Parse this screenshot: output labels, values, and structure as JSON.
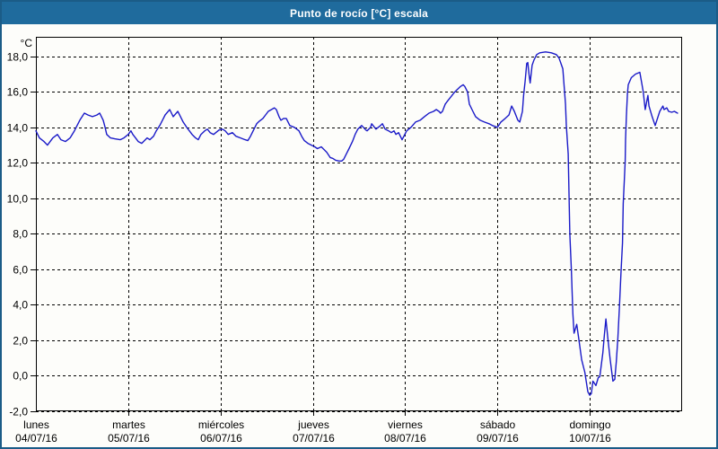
{
  "window": {
    "title": "Punto de rocío [°C] escala",
    "colors": {
      "titlebar": "#1f6b9d",
      "frame": "#1b5c87",
      "background": "#fdfdfa"
    }
  },
  "chart_data": {
    "type": "line",
    "title": "Punto de rocío [°C] escala",
    "ylabel": "°C",
    "xlabel": "",
    "ylim": [
      -2,
      19.1
    ],
    "grid": {
      "style": "dashed",
      "color": "#000000"
    },
    "legend": "none",
    "y_ticks": [
      {
        "value": 18,
        "label": "18,0"
      },
      {
        "value": 16,
        "label": "16,0"
      },
      {
        "value": 14,
        "label": "14,0"
      },
      {
        "value": 12,
        "label": "12,0"
      },
      {
        "value": 10,
        "label": "10,0"
      },
      {
        "value": 8,
        "label": "8,0"
      },
      {
        "value": 6,
        "label": "6,0"
      },
      {
        "value": 4,
        "label": "4,0"
      },
      {
        "value": 2,
        "label": "2,0"
      },
      {
        "value": 0,
        "label": "0,0"
      },
      {
        "value": -2,
        "label": "-2,0"
      }
    ],
    "x_axis": {
      "unit": "hours",
      "range": [
        0,
        168
      ],
      "day_ticks": [
        {
          "t": 0,
          "weekday": "lunes",
          "date": "04/07/16"
        },
        {
          "t": 24,
          "weekday": "martes",
          "date": "05/07/16"
        },
        {
          "t": 48,
          "weekday": "miércoles",
          "date": "06/07/16"
        },
        {
          "t": 72,
          "weekday": "jueves",
          "date": "07/07/16"
        },
        {
          "t": 96,
          "weekday": "viernes",
          "date": "08/07/16"
        },
        {
          "t": 120,
          "weekday": "sábado",
          "date": "09/07/16"
        },
        {
          "t": 144,
          "weekday": "domingo",
          "date": "10/07/16"
        }
      ]
    },
    "series": [
      {
        "name": "punto-de-rocio",
        "color": "#1a1ac8",
        "points": [
          [
            0,
            13.8
          ],
          [
            0.9,
            13.4
          ],
          [
            2.1,
            13.2
          ],
          [
            3,
            13.0
          ],
          [
            4.4,
            13.4
          ],
          [
            5.6,
            13.6
          ],
          [
            6.5,
            13.3
          ],
          [
            7.7,
            13.2
          ],
          [
            8.9,
            13.4
          ],
          [
            10,
            13.8
          ],
          [
            10.7,
            14.1
          ],
          [
            11.4,
            14.4
          ],
          [
            12.6,
            14.8
          ],
          [
            13.5,
            14.7
          ],
          [
            14.7,
            14.6
          ],
          [
            15.9,
            14.7
          ],
          [
            16.6,
            14.8
          ],
          [
            17.5,
            14.4
          ],
          [
            18,
            14.0
          ],
          [
            18.4,
            13.6
          ],
          [
            19.4,
            13.4
          ],
          [
            20.5,
            13.35
          ],
          [
            21.9,
            13.3
          ],
          [
            22.9,
            13.4
          ],
          [
            24,
            13.6
          ],
          [
            24.7,
            13.8
          ],
          [
            25.2,
            13.6
          ],
          [
            25.9,
            13.4
          ],
          [
            26.6,
            13.2
          ],
          [
            27.5,
            13.1
          ],
          [
            28.2,
            13.25
          ],
          [
            28.9,
            13.4
          ],
          [
            29.6,
            13.3
          ],
          [
            30.6,
            13.5
          ],
          [
            31.3,
            13.8
          ],
          [
            32.2,
            14.1
          ],
          [
            32.9,
            14.4
          ],
          [
            33.6,
            14.7
          ],
          [
            34.8,
            15.0
          ],
          [
            35.7,
            14.6
          ],
          [
            36.9,
            14.9
          ],
          [
            37.6,
            14.6
          ],
          [
            38.3,
            14.3
          ],
          [
            39.2,
            14.0
          ],
          [
            39.9,
            13.8
          ],
          [
            40.6,
            13.6
          ],
          [
            41.5,
            13.4
          ],
          [
            42.2,
            13.3
          ],
          [
            42.9,
            13.6
          ],
          [
            43.9,
            13.8
          ],
          [
            44.6,
            13.9
          ],
          [
            45.3,
            13.7
          ],
          [
            46.2,
            13.6
          ],
          [
            47.6,
            13.85
          ],
          [
            48.5,
            13.9
          ],
          [
            49.2,
            13.8
          ],
          [
            50,
            13.6
          ],
          [
            51.1,
            13.7
          ],
          [
            52,
            13.5
          ],
          [
            53.2,
            13.4
          ],
          [
            54.4,
            13.3
          ],
          [
            55.1,
            13.25
          ],
          [
            55.8,
            13.5
          ],
          [
            56.7,
            13.9
          ],
          [
            57.4,
            14.2
          ],
          [
            58.1,
            14.35
          ],
          [
            59,
            14.5
          ],
          [
            59.7,
            14.7
          ],
          [
            60.4,
            14.9
          ],
          [
            62,
            15.1
          ],
          [
            62.5,
            15.0
          ],
          [
            63.2,
            14.6
          ],
          [
            63.7,
            14.4
          ],
          [
            64.4,
            14.5
          ],
          [
            65.1,
            14.5
          ],
          [
            66,
            14.1
          ],
          [
            67.2,
            14.0
          ],
          [
            68.4,
            13.8
          ],
          [
            69.1,
            13.5
          ],
          [
            69.8,
            13.25
          ],
          [
            70.7,
            13.1
          ],
          [
            71.6,
            13.0
          ],
          [
            72.5,
            12.9
          ],
          [
            73.2,
            12.8
          ],
          [
            74.2,
            12.9
          ],
          [
            74.9,
            12.75
          ],
          [
            75.6,
            12.6
          ],
          [
            76.5,
            12.3
          ],
          [
            77.2,
            12.25
          ],
          [
            77.9,
            12.15
          ],
          [
            78.8,
            12.1
          ],
          [
            79.5,
            12.1
          ],
          [
            80,
            12.2
          ],
          [
            80.7,
            12.5
          ],
          [
            81.4,
            12.8
          ],
          [
            82.3,
            13.2
          ],
          [
            83,
            13.6
          ],
          [
            83.7,
            13.9
          ],
          [
            84.7,
            14.1
          ],
          [
            85.8,
            13.85
          ],
          [
            86.1,
            13.8
          ],
          [
            87,
            14.0
          ],
          [
            87.3,
            14.2
          ],
          [
            88.4,
            13.9
          ],
          [
            89.6,
            14.1
          ],
          [
            90.1,
            14.2
          ],
          [
            90.8,
            13.9
          ],
          [
            91.7,
            13.8
          ],
          [
            92.4,
            13.7
          ],
          [
            93.1,
            13.8
          ],
          [
            93.6,
            13.6
          ],
          [
            94.3,
            13.7
          ],
          [
            95.2,
            13.3
          ],
          [
            96.4,
            13.8
          ],
          [
            97.5,
            14.0
          ],
          [
            98.7,
            14.3
          ],
          [
            99.9,
            14.4
          ],
          [
            101,
            14.6
          ],
          [
            102.2,
            14.8
          ],
          [
            103.4,
            14.9
          ],
          [
            104.1,
            15.0
          ],
          [
            104.8,
            14.9
          ],
          [
            105.2,
            14.8
          ],
          [
            105.7,
            14.9
          ],
          [
            106.4,
            15.3
          ],
          [
            107.1,
            15.5
          ],
          [
            108,
            15.75
          ],
          [
            108.7,
            15.95
          ],
          [
            109.4,
            16.1
          ],
          [
            110.4,
            16.3
          ],
          [
            111.1,
            16.4
          ],
          [
            111.5,
            16.3
          ],
          [
            112.2,
            16.0
          ],
          [
            112.7,
            15.3
          ],
          [
            113.6,
            14.9
          ],
          [
            114.3,
            14.6
          ],
          [
            115.5,
            14.4
          ],
          [
            116.6,
            14.3
          ],
          [
            117.8,
            14.2
          ],
          [
            118.7,
            14.1
          ],
          [
            120,
            14.0
          ],
          [
            120.9,
            14.3
          ],
          [
            122,
            14.5
          ],
          [
            123,
            14.7
          ],
          [
            123.7,
            15.2
          ],
          [
            124.4,
            14.9
          ],
          [
            125.3,
            14.4
          ],
          [
            125.8,
            14.3
          ],
          [
            126.5,
            14.9
          ],
          [
            126.8,
            15.8
          ],
          [
            127.2,
            16.6
          ],
          [
            127.6,
            17.6
          ],
          [
            127.9,
            17.65
          ],
          [
            128.2,
            17.0
          ],
          [
            128.5,
            16.5
          ],
          [
            129,
            17.5
          ],
          [
            129.5,
            17.8
          ],
          [
            130.2,
            18.1
          ],
          [
            131,
            18.2
          ],
          [
            132.5,
            18.25
          ],
          [
            134,
            18.2
          ],
          [
            135.3,
            18.1
          ],
          [
            136,
            17.9
          ],
          [
            136.5,
            17.6
          ],
          [
            137,
            17.3
          ],
          [
            137.4,
            16.1
          ],
          [
            137.7,
            15.3
          ],
          [
            137.9,
            14.1
          ],
          [
            138.4,
            12.5
          ],
          [
            138.8,
            8.0
          ],
          [
            139.2,
            6.0
          ],
          [
            139.6,
            3.5
          ],
          [
            139.9,
            2.4
          ],
          [
            140.6,
            2.9
          ],
          [
            141.2,
            2.0
          ],
          [
            141.9,
            0.9
          ],
          [
            142.7,
            0.2
          ],
          [
            143.5,
            -0.9
          ],
          [
            144,
            -1.1
          ],
          [
            144.4,
            -1.0
          ],
          [
            144.8,
            -0.3
          ],
          [
            145.6,
            -0.55
          ],
          [
            146.2,
            -0.1
          ],
          [
            146.6,
            -0.05
          ],
          [
            147.4,
            1.3
          ],
          [
            147.8,
            2.3
          ],
          [
            148.2,
            3.2
          ],
          [
            148.7,
            2.1
          ],
          [
            149.3,
            0.9
          ],
          [
            150,
            -0.3
          ],
          [
            150.5,
            -0.2
          ],
          [
            150.9,
            0.8
          ],
          [
            151.3,
            2.1
          ],
          [
            151.7,
            3.8
          ],
          [
            152.1,
            5.8
          ],
          [
            152.5,
            7.5
          ],
          [
            152.7,
            9.7
          ],
          [
            153,
            11.1
          ],
          [
            153.2,
            12.1
          ],
          [
            153.3,
            13.3
          ],
          [
            153.5,
            14.6
          ],
          [
            153.8,
            15.9
          ],
          [
            154,
            16.4
          ],
          [
            154.8,
            16.8
          ],
          [
            155.9,
            17.0
          ],
          [
            157,
            17.1
          ],
          [
            157.5,
            16.5
          ],
          [
            157.9,
            16.0
          ],
          [
            158.4,
            15.0
          ],
          [
            159.1,
            15.8
          ],
          [
            159.4,
            15.2
          ],
          [
            160.2,
            14.6
          ],
          [
            161,
            14.1
          ],
          [
            162.2,
            14.9
          ],
          [
            163,
            15.2
          ],
          [
            163.3,
            15.0
          ],
          [
            164,
            15.1
          ],
          [
            164.5,
            14.9
          ],
          [
            165.3,
            14.85
          ],
          [
            166,
            14.9
          ],
          [
            166.8,
            14.8
          ]
        ]
      }
    ]
  }
}
